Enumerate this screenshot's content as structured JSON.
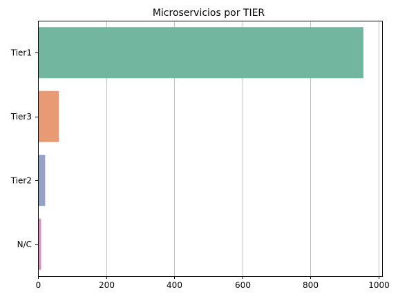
{
  "chart_data": {
    "type": "bar",
    "orientation": "horizontal",
    "title": "Microservicios por TIER",
    "xlabel": "",
    "ylabel": "",
    "categories": [
      "Tier1",
      "Tier3",
      "Tier2",
      "N/C"
    ],
    "values": [
      955,
      61,
      21,
      9
    ],
    "colors": [
      "#73b6a0",
      "#e99a75",
      "#93a2c6",
      "#d98ec0"
    ],
    "xlim": [
      0,
      1010
    ],
    "xticks": [
      0,
      200,
      400,
      600,
      800,
      1000
    ],
    "grid": "x"
  }
}
